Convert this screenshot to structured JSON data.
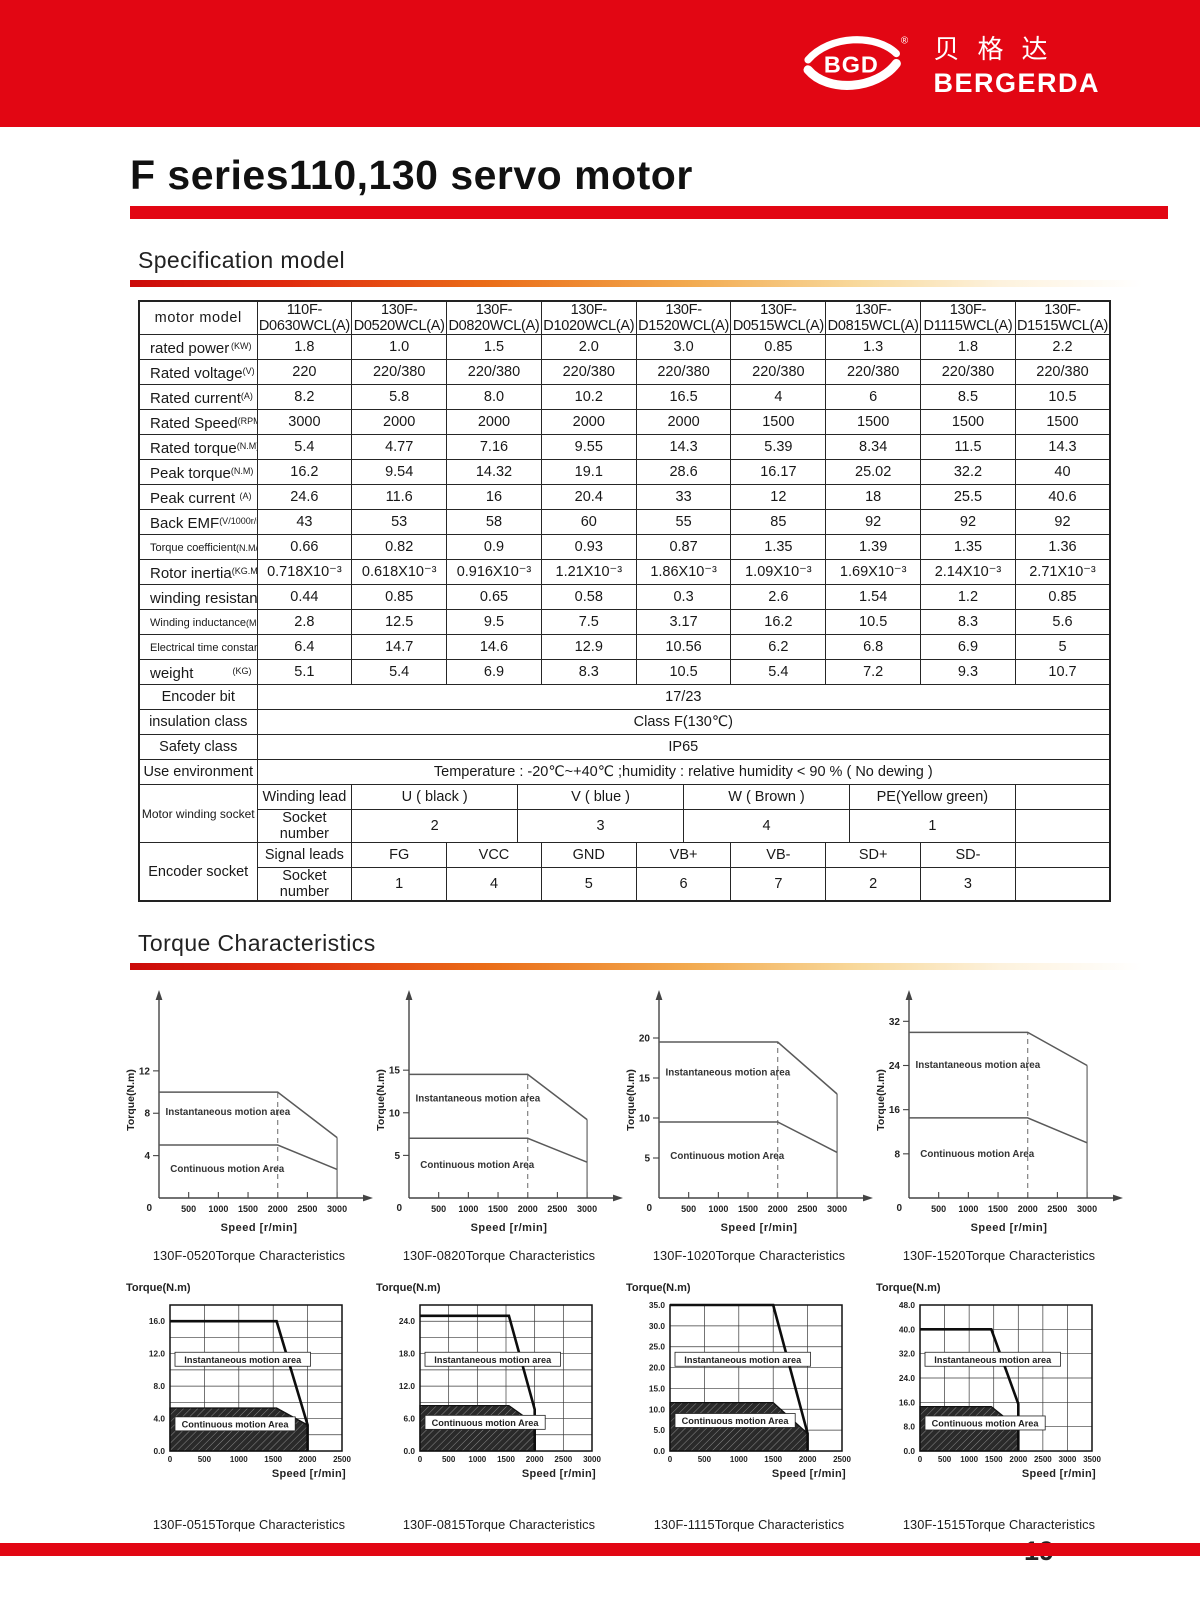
{
  "brand": {
    "logo_text": "BGD",
    "registered": "®",
    "chinese": "贝格达",
    "name": "BERGERDA"
  },
  "page": {
    "title": "F series110,130 servo motor",
    "number": "19"
  },
  "sections": {
    "spec": "Specification model",
    "torque": "Torque Characteristics"
  },
  "colors": {
    "brand_red": "#e20613",
    "chart_dark_fill": "#2a2a2a",
    "chart_line": "#5a5a5a"
  },
  "spec_table": {
    "header": {
      "label": "motor model",
      "models": [
        "110F-D0630WCL(A)",
        "130F-D0520WCL(A)",
        "130F-D0820WCL(A)",
        "130F-D1020WCL(A)",
        "130F-D1520WCL(A)",
        "130F-D0515WCL(A)",
        "130F-D0815WCL(A)",
        "130F-D1115WCL(A)",
        "130F-D1515WCL(A)"
      ]
    },
    "rows": [
      {
        "label": "rated power",
        "unit": "KW",
        "values": [
          "1.8",
          "1.0",
          "1.5",
          "2.0",
          "3.0",
          "0.85",
          "1.3",
          "1.8",
          "2.2"
        ]
      },
      {
        "label": "Rated voltage",
        "unit": "V",
        "values": [
          "220",
          "220/380",
          "220/380",
          "220/380",
          "220/380",
          "220/380",
          "220/380",
          "220/380",
          "220/380"
        ]
      },
      {
        "label": "Rated current",
        "unit": "A",
        "values": [
          "8.2",
          "5.8",
          "8.0",
          "10.2",
          "16.5",
          "4",
          "6",
          "8.5",
          "10.5"
        ]
      },
      {
        "label": "Rated Speed",
        "unit": "RPM",
        "values": [
          "3000",
          "2000",
          "2000",
          "2000",
          "2000",
          "1500",
          "1500",
          "1500",
          "1500"
        ]
      },
      {
        "label": "Rated torque",
        "unit": "N.M",
        "values": [
          "5.4",
          "4.77",
          "7.16",
          "9.55",
          "14.3",
          "5.39",
          "8.34",
          "11.5",
          "14.3"
        ]
      },
      {
        "label": "Peak torque",
        "unit": "N.M",
        "values": [
          "16.2",
          "9.54",
          "14.32",
          "19.1",
          "28.6",
          "16.17",
          "25.02",
          "32.2",
          "40"
        ]
      },
      {
        "label": "Peak current",
        "unit": "A",
        "values": [
          "24.6",
          "11.6",
          "16",
          "20.4",
          "33",
          "12",
          "18",
          "25.5",
          "40.6"
        ]
      },
      {
        "label": "Back EMF",
        "unit": "V/1000r/min",
        "values": [
          "43",
          "53",
          "58",
          "60",
          "55",
          "85",
          "92",
          "92",
          "92"
        ]
      },
      {
        "label": "Torque coefficient",
        "unit": "N.M/A",
        "values": [
          "0.66",
          "0.82",
          "0.9",
          "0.93",
          "0.87",
          "1.35",
          "1.39",
          "1.35",
          "1.36"
        ]
      },
      {
        "label": "Rotor inertia",
        "unit": "KG.M²",
        "values": [
          "0.718X10⁻³",
          "0.618X10⁻³",
          "0.916X10⁻³",
          "1.21X10⁻³",
          "1.86X10⁻³",
          "1.09X10⁻³",
          "1.69X10⁻³",
          "2.14X10⁻³",
          "2.71X10⁻³"
        ]
      },
      {
        "label": "winding resistance",
        "unit": "Ω",
        "values": [
          "0.44",
          "0.85",
          "0.65",
          "0.58",
          "0.3",
          "2.6",
          "1.54",
          "1.2",
          "0.85"
        ]
      },
      {
        "label": "Winding inductance",
        "unit": "MH",
        "values": [
          "2.8",
          "12.5",
          "9.5",
          "7.5",
          "3.17",
          "16.2",
          "10.5",
          "8.3",
          "5.6"
        ]
      },
      {
        "label": "Electrical time constant",
        "unit": "MS",
        "values": [
          "6.4",
          "14.7",
          "14.6",
          "12.9",
          "10.56",
          "6.2",
          "6.8",
          "6.9",
          "5"
        ]
      },
      {
        "label": "weight",
        "unit": "KG",
        "values": [
          "5.1",
          "5.4",
          "6.9",
          "8.3",
          "10.5",
          "5.4",
          "7.2",
          "9.3",
          "10.7"
        ]
      }
    ],
    "span_rows": [
      {
        "label": "Encoder bit",
        "value": "17/23"
      },
      {
        "label": "insulation class",
        "value": "Class F(130℃)"
      },
      {
        "label": "Safety class",
        "value": "IP65"
      },
      {
        "label": "Use environment",
        "value": "Temperature : -20℃~+40℃ ;humidity : relative humidity < 90 % ( No dewing )"
      }
    ],
    "winding": {
      "label": "Motor winding socket",
      "rows": [
        {
          "label": "Winding lead",
          "cells": [
            "U ( black )",
            "V ( blue )",
            "W ( Brown )",
            "PE(Yellow green)"
          ]
        },
        {
          "label": "Socket number",
          "cells": [
            "2",
            "3",
            "4",
            "1"
          ]
        }
      ]
    },
    "encoder": {
      "label": "Encoder socket",
      "rows": [
        {
          "label": "Signal leads",
          "cells": [
            "FG",
            "VCC",
            "GND",
            "VB+",
            "VB-",
            "SD+",
            "SD-"
          ]
        },
        {
          "label": "Socket number",
          "cells": [
            "1",
            "4",
            "5",
            "6",
            "7",
            "2",
            "3"
          ]
        }
      ]
    }
  },
  "chart_data": [
    {
      "id": "130F-0520",
      "caption": "130F-0520Torque Characteristics",
      "type": "line",
      "style": "axes",
      "xlabel": "Speed [r/min]",
      "ylabel": "Torque(N.m)",
      "x_ticks": [
        500,
        1000,
        1500,
        2000,
        2500,
        3000
      ],
      "y_ticks": [
        4,
        8,
        12
      ],
      "axis": {
        "x_max": 3420,
        "y_max": 18.5
      },
      "rated_speed": 2000,
      "max_speed": 3000,
      "series": [
        {
          "name": "Instantaneous motion area",
          "points": [
            [
              0,
              10
            ],
            [
              2000,
              10
            ],
            [
              3000,
              5.7
            ]
          ]
        },
        {
          "name": "Continuous motion Area",
          "points": [
            [
              0,
              5
            ],
            [
              2000,
              5
            ],
            [
              3000,
              2.7
            ]
          ]
        }
      ]
    },
    {
      "id": "130F-0820",
      "caption": "130F-0820Torque Characteristics",
      "type": "line",
      "style": "axes",
      "xlabel": "Speed [r/min]",
      "ylabel": "Torque(N.m)",
      "x_ticks": [
        500,
        1000,
        1500,
        2000,
        2500,
        3000
      ],
      "y_ticks": [
        5,
        10,
        15
      ],
      "axis": {
        "x_max": 3420,
        "y_max": 23
      },
      "rated_speed": 2000,
      "max_speed": 3000,
      "series": [
        {
          "name": "Instantaneous motion area",
          "points": [
            [
              0,
              14.5
            ],
            [
              2000,
              14.5
            ],
            [
              3000,
              9.2
            ]
          ]
        },
        {
          "name": "Continuous motion Area",
          "points": [
            [
              0,
              7
            ],
            [
              2000,
              7
            ],
            [
              3000,
              4.2
            ]
          ]
        }
      ]
    },
    {
      "id": "130F-1020",
      "caption": "130F-1020Torque Characteristics",
      "type": "line",
      "style": "axes",
      "xlabel": "Speed [r/min]",
      "ylabel": "Torque(N.m)",
      "x_ticks": [
        500,
        1000,
        1500,
        2000,
        2500,
        3000
      ],
      "y_ticks": [
        5,
        10,
        15,
        20
      ],
      "axis": {
        "x_max": 3420,
        "y_max": 24.5
      },
      "rated_speed": 2000,
      "max_speed": 3000,
      "series": [
        {
          "name": "Instantaneous motion area",
          "points": [
            [
              0,
              19.5
            ],
            [
              2000,
              19.5
            ],
            [
              3000,
              13
            ]
          ]
        },
        {
          "name": "Continuous motion Area",
          "points": [
            [
              0,
              9.5
            ],
            [
              2000,
              9.5
            ],
            [
              3000,
              5.7
            ]
          ]
        }
      ]
    },
    {
      "id": "130F-1520",
      "caption": "130F-1520Torque Characteristics",
      "type": "line",
      "style": "axes",
      "xlabel": "Speed [r/min]",
      "ylabel": "Torque(N.m)",
      "x_ticks": [
        500,
        1000,
        1500,
        2000,
        2500,
        3000
      ],
      "y_ticks": [
        8,
        16,
        24,
        32
      ],
      "axis": {
        "x_max": 3420,
        "y_max": 35.5
      },
      "rated_speed": 2000,
      "max_speed": 3000,
      "series": [
        {
          "name": "Instantaneous motion area",
          "points": [
            [
              0,
              30
            ],
            [
              2000,
              30
            ],
            [
              3000,
              24
            ]
          ]
        },
        {
          "name": "Continuous motion Area",
          "points": [
            [
              0,
              14.5
            ],
            [
              2000,
              14.5
            ],
            [
              3000,
              10
            ]
          ]
        }
      ]
    },
    {
      "id": "130F-0515",
      "caption": "130F-0515Torque Characteristics",
      "type": "area",
      "style": "grid",
      "xlabel": "Speed [r/min]",
      "ylabel": "Torque(N.m)",
      "x_ticks": [
        0,
        500,
        1000,
        1500,
        2000,
        2500
      ],
      "y_ticks": [
        0,
        4,
        8,
        12,
        16
      ],
      "axis": {
        "x_max": 2500,
        "y_max": 18,
        "y_grid_step": 2,
        "x_grid_step": 500
      },
      "series": [
        {
          "name": "Instantaneous motion area",
          "points": [
            [
              0,
              16
            ],
            [
              1550,
              16
            ],
            [
              2000,
              3.2
            ],
            [
              2000,
              0
            ]
          ]
        },
        {
          "name": "Continuous motion Area",
          "points": [
            [
              0,
              5.3
            ],
            [
              1550,
              5.3
            ],
            [
              2000,
              3.2
            ],
            [
              2000,
              0
            ],
            [
              0,
              0
            ]
          ]
        }
      ]
    },
    {
      "id": "130F-0815",
      "caption": "130F-0815Torque Characteristics",
      "type": "area",
      "style": "grid",
      "xlabel": "Speed [r/min]",
      "ylabel": "Torque(N.m)",
      "x_ticks": [
        0,
        500,
        1000,
        1500,
        2000,
        2500,
        3000
      ],
      "y_ticks": [
        0,
        6,
        12,
        18,
        24
      ],
      "axis": {
        "x_max": 3000,
        "y_max": 27,
        "y_grid_step": 3,
        "x_grid_step": 500
      },
      "series": [
        {
          "name": "Instantaneous motion area",
          "points": [
            [
              0,
              25
            ],
            [
              1550,
              25
            ],
            [
              2000,
              7.7
            ],
            [
              2000,
              0
            ]
          ]
        },
        {
          "name": "Continuous motion Area",
          "points": [
            [
              0,
              8.4
            ],
            [
              1550,
              8.4
            ],
            [
              2000,
              5
            ],
            [
              2000,
              0
            ],
            [
              0,
              0
            ]
          ]
        }
      ]
    },
    {
      "id": "130F-1115",
      "caption": "130F-1115Torque Characteristics",
      "type": "area",
      "style": "grid",
      "xlabel": "Speed [r/min]",
      "ylabel": "Torque(N.m)",
      "x_ticks": [
        0,
        500,
        1000,
        1500,
        2000,
        2500
      ],
      "y_ticks": [
        0,
        5,
        10,
        15,
        20,
        25,
        30,
        35
      ],
      "axis": {
        "x_max": 2500,
        "y_max": 35,
        "y_grid_step": 5,
        "x_grid_step": 500
      },
      "series": [
        {
          "name": "Instantaneous motion area",
          "points": [
            [
              0,
              35
            ],
            [
              1500,
              35
            ],
            [
              2000,
              4.2
            ],
            [
              2000,
              0
            ]
          ]
        },
        {
          "name": "Continuous motion Area",
          "points": [
            [
              0,
              11.6
            ],
            [
              1500,
              11.6
            ],
            [
              2000,
              4.2
            ],
            [
              2000,
              0
            ],
            [
              0,
              0
            ]
          ]
        }
      ]
    },
    {
      "id": "130F-1515",
      "caption": "130F-1515Torque Characteristics",
      "type": "area",
      "style": "grid",
      "xlabel": "Speed [r/min]",
      "ylabel": "Torque(N.m)",
      "x_ticks": [
        0,
        500,
        1000,
        1500,
        2000,
        2500,
        3000,
        3500
      ],
      "y_ticks": [
        0,
        8,
        16,
        24,
        32,
        40,
        48
      ],
      "axis": {
        "x_max": 3500,
        "y_max": 48,
        "y_grid_step": 8,
        "x_grid_step": 500
      },
      "series": [
        {
          "name": "Instantaneous motion area",
          "points": [
            [
              0,
              40
            ],
            [
              1450,
              40
            ],
            [
              2000,
              15.5
            ],
            [
              2000,
              0
            ]
          ]
        },
        {
          "name": "Continuous motion Area",
          "points": [
            [
              0,
              14.6
            ],
            [
              1450,
              14.6
            ],
            [
              2000,
              7.5
            ],
            [
              2000,
              0
            ],
            [
              0,
              0
            ]
          ]
        }
      ]
    }
  ]
}
